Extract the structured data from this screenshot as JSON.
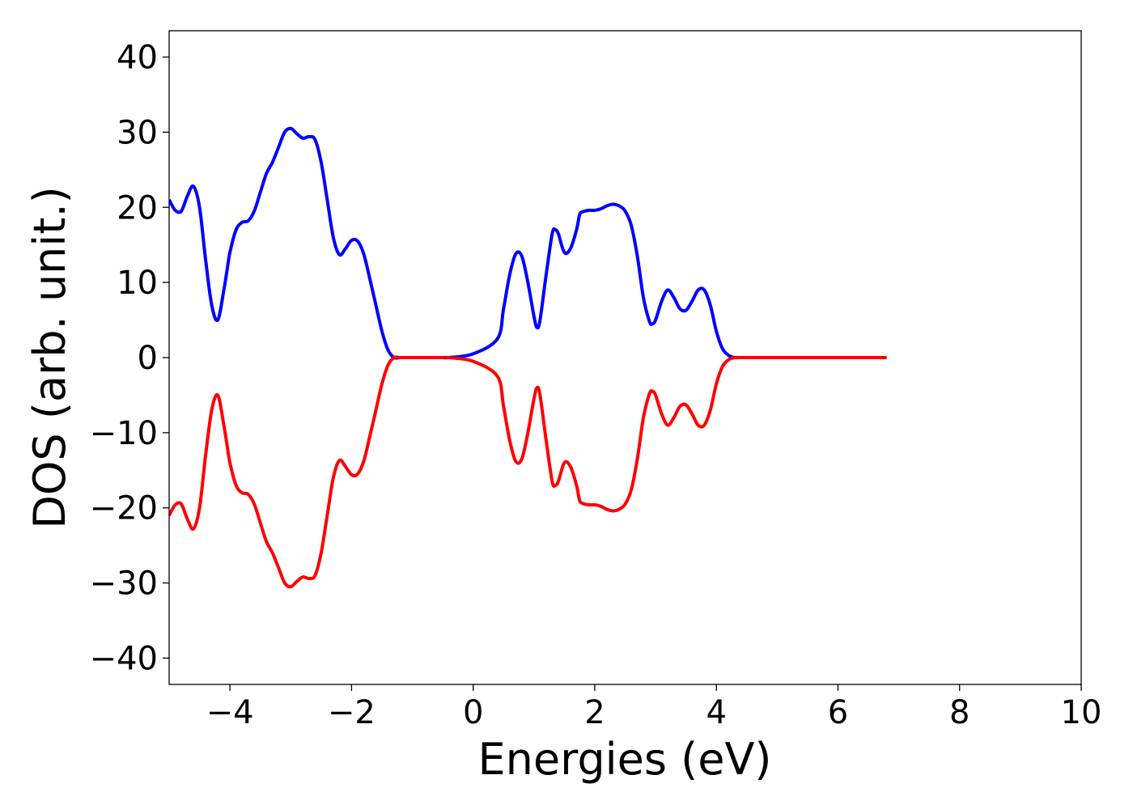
{
  "chart_data": {
    "type": "line",
    "title": "",
    "xlabel": "Energies (eV)",
    "ylabel": "DOS (arb. unit.)",
    "xlim": [
      -5,
      10
    ],
    "ylim": [
      -43.5,
      43.5
    ],
    "xticks": [
      -4,
      -2,
      0,
      2,
      4,
      6,
      8,
      10
    ],
    "xtick_labels": [
      "−4",
      "−2",
      "0",
      "2",
      "4",
      "6",
      "8",
      "10"
    ],
    "yticks": [
      40,
      30,
      20,
      10,
      0,
      -10,
      -20,
      -30,
      -40
    ],
    "ytick_labels": [
      "40",
      "30",
      "20",
      "10",
      "0",
      "−10",
      "−20",
      "−30",
      "−40"
    ],
    "grid": false,
    "legend": "none",
    "series": [
      {
        "color": "#0000ff",
        "x": [
          -5.0,
          -4.9,
          -4.8,
          -4.7,
          -4.6,
          -4.5,
          -4.4,
          -4.3,
          -4.2,
          -4.1,
          -4.05,
          -4.0,
          -3.9,
          -3.8,
          -3.7,
          -3.6,
          -3.5,
          -3.4,
          -3.3,
          -3.2,
          -3.1,
          -3.0,
          -2.9,
          -2.8,
          -2.7,
          -2.6,
          -2.5,
          -2.4,
          -2.3,
          -2.2,
          -2.1,
          -2.0,
          -1.9,
          -1.8,
          -1.7,
          -1.6,
          -1.5,
          -1.4,
          -1.3,
          -1.2,
          -1.1,
          -1.0,
          -0.9,
          -0.8,
          -0.7,
          -0.6,
          -0.5,
          -0.4,
          0.0,
          0.4,
          0.5,
          0.6,
          0.7,
          0.8,
          0.9,
          1.0,
          1.05,
          1.1,
          1.2,
          1.3,
          1.35,
          1.4,
          1.5,
          1.6,
          1.7,
          1.75,
          1.8,
          1.9,
          2.0,
          2.1,
          2.2,
          2.3,
          2.4,
          2.5,
          2.6,
          2.7,
          2.8,
          2.9,
          2.95,
          3.0,
          3.1,
          3.2,
          3.3,
          3.4,
          3.5,
          3.6,
          3.7,
          3.8,
          3.9,
          4.0,
          4.1,
          4.2,
          4.3,
          4.4,
          4.5,
          4.55,
          4.6,
          4.7,
          4.8,
          4.9,
          5.0,
          5.1,
          5.2,
          6.0,
          6.8
        ],
        "y": [
          21.0,
          19.6,
          19.5,
          21.5,
          22.8,
          20.0,
          13.0,
          7.0,
          5.0,
          9.0,
          11.5,
          14.0,
          17.0,
          18.0,
          18.2,
          19.5,
          22.0,
          24.5,
          26.0,
          28.0,
          30.0,
          30.5,
          29.8,
          29.2,
          29.4,
          29.0,
          26.0,
          21.0,
          16.0,
          13.7,
          14.5,
          15.6,
          15.5,
          13.8,
          10.5,
          7.0,
          3.5,
          1.0,
          0.0,
          0.0,
          0.0,
          0.0,
          0.0,
          0.0,
          0.0,
          0.0,
          0.0,
          0.0,
          0.5,
          2.5,
          6.5,
          11.0,
          13.8,
          13.5,
          10.0,
          5.5,
          4.0,
          5.0,
          11.0,
          16.5,
          17.0,
          16.5,
          14.0,
          14.5,
          17.0,
          19.0,
          19.4,
          19.6,
          19.6,
          19.8,
          20.2,
          20.4,
          20.2,
          19.5,
          17.6,
          13.5,
          8.0,
          4.8,
          4.5,
          5.0,
          7.5,
          9.0,
          8.0,
          6.5,
          6.3,
          7.5,
          9.0,
          9.0,
          7.0,
          3.5,
          1.2,
          0.3,
          0.0,
          0.0,
          0.0,
          0.0,
          0.0,
          0.0,
          0.0,
          0.0,
          0.0,
          0.0,
          0.0,
          0.0,
          0.0
        ]
      },
      {
        "color": "#ff0000",
        "x": [
          -5.0,
          -4.9,
          -4.8,
          -4.7,
          -4.6,
          -4.5,
          -4.4,
          -4.3,
          -4.2,
          -4.1,
          -4.05,
          -4.0,
          -3.9,
          -3.8,
          -3.7,
          -3.6,
          -3.5,
          -3.4,
          -3.3,
          -3.2,
          -3.1,
          -3.0,
          -2.9,
          -2.8,
          -2.7,
          -2.6,
          -2.5,
          -2.4,
          -2.3,
          -2.2,
          -2.1,
          -2.0,
          -1.9,
          -1.8,
          -1.7,
          -1.6,
          -1.5,
          -1.4,
          -1.3,
          -1.2,
          -1.1,
          -1.0,
          -0.9,
          -0.8,
          -0.7,
          -0.6,
          -0.5,
          -0.4,
          0.0,
          0.4,
          0.5,
          0.6,
          0.7,
          0.8,
          0.9,
          1.0,
          1.05,
          1.1,
          1.2,
          1.3,
          1.35,
          1.4,
          1.5,
          1.6,
          1.7,
          1.75,
          1.8,
          1.9,
          2.0,
          2.1,
          2.2,
          2.3,
          2.4,
          2.5,
          2.6,
          2.7,
          2.8,
          2.9,
          2.95,
          3.0,
          3.1,
          3.2,
          3.3,
          3.4,
          3.5,
          3.6,
          3.7,
          3.8,
          3.9,
          4.0,
          4.1,
          4.2,
          4.3,
          4.4,
          4.5,
          4.55,
          4.6,
          4.7,
          4.8,
          4.9,
          5.0,
          5.1,
          5.2,
          6.0,
          6.8
        ],
        "y": [
          -21.0,
          -19.6,
          -19.5,
          -21.5,
          -22.8,
          -20.0,
          -13.0,
          -7.0,
          -5.0,
          -9.0,
          -11.5,
          -14.0,
          -17.0,
          -18.0,
          -18.2,
          -19.5,
          -22.0,
          -24.5,
          -26.0,
          -28.0,
          -30.0,
          -30.5,
          -29.8,
          -29.2,
          -29.4,
          -29.0,
          -26.0,
          -21.0,
          -16.0,
          -13.7,
          -14.5,
          -15.6,
          -15.5,
          -13.8,
          -10.5,
          -7.0,
          -3.5,
          -1.0,
          0.0,
          0.0,
          0.0,
          0.0,
          0.0,
          0.0,
          0.0,
          0.0,
          0.0,
          0.0,
          -0.5,
          -2.5,
          -6.5,
          -11.0,
          -13.8,
          -13.5,
          -10.0,
          -5.5,
          -4.0,
          -5.0,
          -11.0,
          -16.5,
          -17.0,
          -16.5,
          -14.0,
          -14.5,
          -17.0,
          -19.0,
          -19.4,
          -19.6,
          -19.6,
          -19.8,
          -20.2,
          -20.4,
          -20.2,
          -19.5,
          -17.6,
          -13.5,
          -8.0,
          -4.8,
          -4.5,
          -5.0,
          -7.5,
          -9.0,
          -8.0,
          -6.5,
          -6.3,
          -7.5,
          -9.0,
          -9.0,
          -7.0,
          -3.5,
          -1.2,
          -0.3,
          0.0,
          0.0,
          0.0,
          0.0,
          0.0,
          0.0,
          0.0,
          0.0,
          0.0,
          0.0,
          0.0,
          0.0,
          0.0
        ]
      }
    ]
  }
}
